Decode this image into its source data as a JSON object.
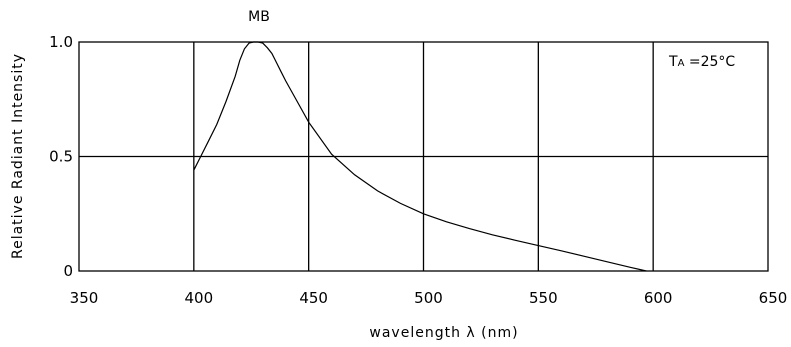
{
  "chart_data": {
    "type": "line",
    "title": "MB",
    "xlabel": "wavelength λ (nm)",
    "ylabel": "Relative Radiant Intensity",
    "annotation": {
      "prefix": "T",
      "subscript": "A",
      "suffix": " =25°C"
    },
    "xlim": [
      350,
      650
    ],
    "ylim": [
      0,
      1.0
    ],
    "x_ticks": [
      350,
      400,
      450,
      500,
      550,
      600,
      650
    ],
    "x_tick_labels": [
      "350",
      "400",
      "450",
      "500",
      "550",
      "600",
      "650"
    ],
    "y_ticks": [
      0,
      0.5,
      1.0
    ],
    "y_tick_labels": [
      "0",
      "0.5",
      "1.0"
    ],
    "grid": true,
    "series": [
      {
        "x": [
          400,
          403,
          406,
          410,
          414,
          418,
          420,
          422,
          424,
          426,
          428,
          430,
          432,
          434,
          436,
          438,
          440,
          445,
          450,
          460,
          470,
          480,
          490,
          500,
          510,
          520,
          530,
          540,
          550,
          560,
          570,
          580,
          590,
          597
        ],
        "y": [
          0.44,
          0.5,
          0.56,
          0.64,
          0.74,
          0.85,
          0.92,
          0.97,
          0.995,
          1.0,
          1.0,
          0.995,
          0.975,
          0.95,
          0.91,
          0.87,
          0.83,
          0.74,
          0.65,
          0.51,
          0.42,
          0.35,
          0.295,
          0.25,
          0.215,
          0.185,
          0.158,
          0.134,
          0.111,
          0.088,
          0.064,
          0.04,
          0.016,
          0.0
        ]
      }
    ]
  }
}
